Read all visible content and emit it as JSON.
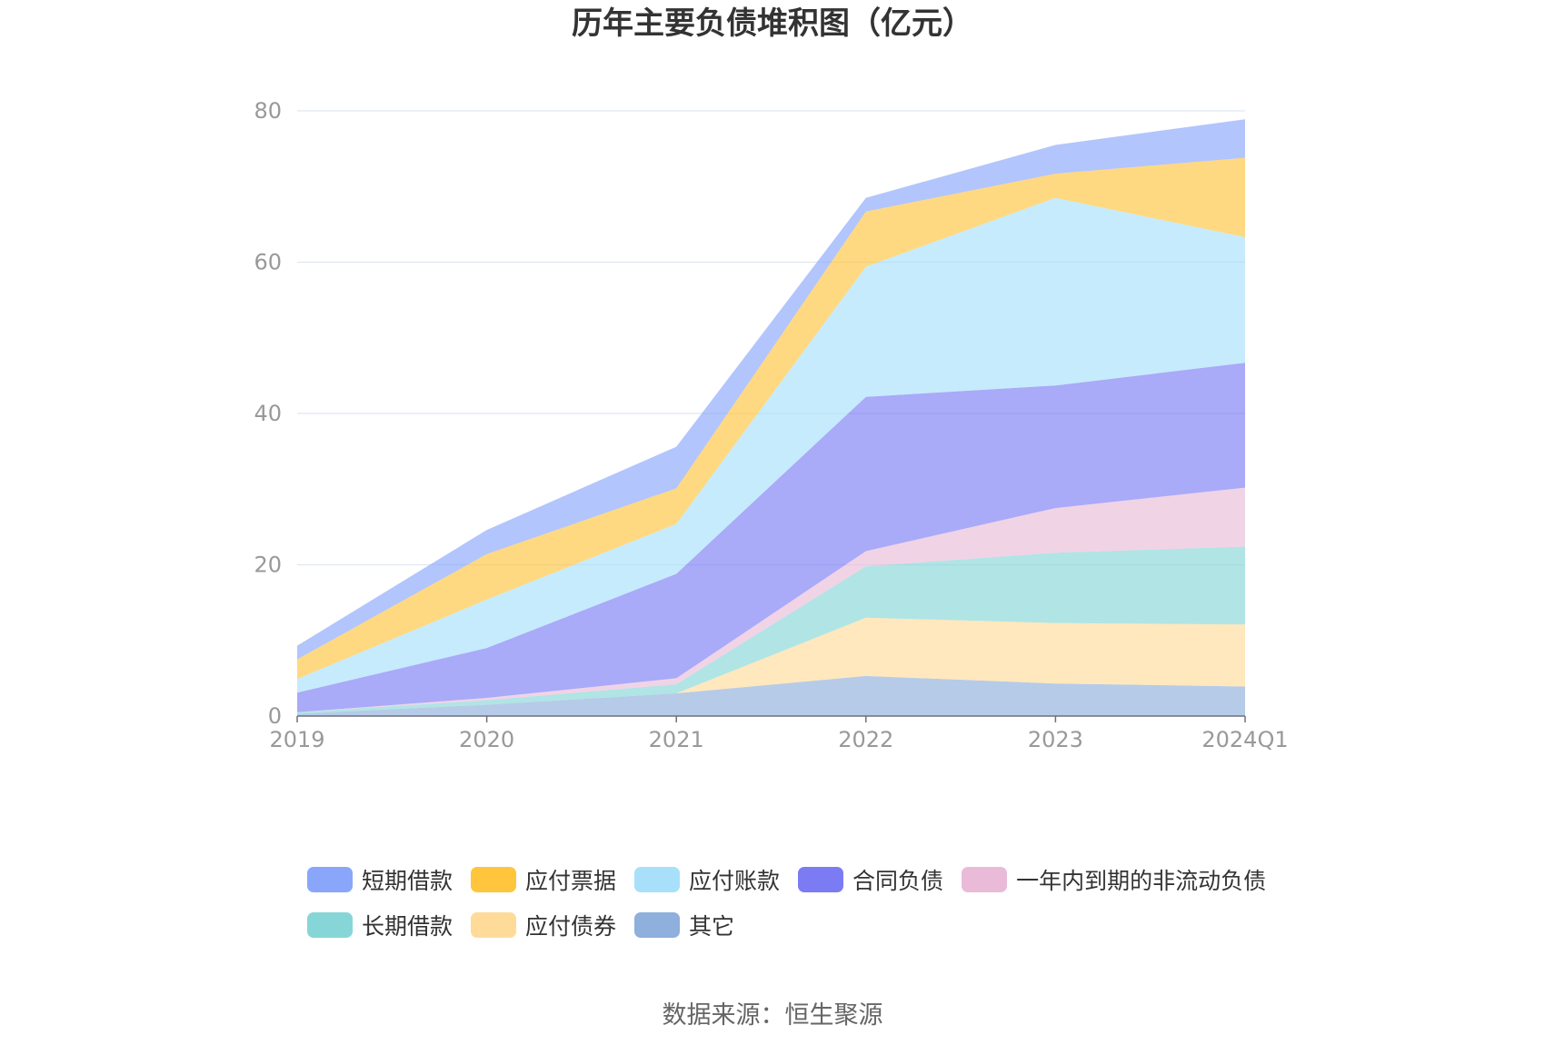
{
  "chart_data": {
    "type": "area",
    "stacked": true,
    "title": "历年主要负债堆积图（亿元）",
    "categories": [
      "2019",
      "2020",
      "2021",
      "2022",
      "2023",
      "2024Q1"
    ],
    "ylim": [
      0,
      80
    ],
    "yticks": [
      0,
      20,
      40,
      60,
      80
    ],
    "grid": true,
    "legend_position": "bottom",
    "series": [
      {
        "name": "其它",
        "color": "#8fafdc",
        "values": [
          0.3,
          1.5,
          3.0,
          5.3,
          4.3,
          3.9
        ]
      },
      {
        "name": "应付债券",
        "color": "#ffdb9a",
        "values": [
          0,
          0,
          0,
          7.7,
          8.0,
          8.2
        ]
      },
      {
        "name": "长期借款",
        "color": "#87d6d7",
        "values": [
          0.2,
          0.6,
          1.2,
          6.8,
          9.3,
          10.3
        ]
      },
      {
        "name": "一年内到期的非流动负债",
        "color": "#e9bbd9",
        "values": [
          0,
          0.3,
          0.8,
          2.0,
          5.9,
          7.8
        ]
      },
      {
        "name": "合同负债",
        "color": "#7b7cf4",
        "values": [
          2.6,
          6.6,
          13.8,
          20.4,
          16.2,
          16.5
        ]
      },
      {
        "name": "应付账款",
        "color": "#a8e0fb",
        "values": [
          1.8,
          6.4,
          6.6,
          17.2,
          24.8,
          16.6
        ]
      },
      {
        "name": "应付票据",
        "color": "#ffc53d",
        "values": [
          2.6,
          6.0,
          4.7,
          7.3,
          3.2,
          10.5
        ]
      },
      {
        "name": "短期借款",
        "color": "#89a6fb",
        "values": [
          1.8,
          3.2,
          5.5,
          1.8,
          3.8,
          5.1
        ]
      }
    ]
  },
  "legend": {
    "row1": [
      "短期借款",
      "应付票据",
      "应付账款",
      "合同负债",
      "一年内到期的非流动负债"
    ],
    "row2": [
      "长期借款",
      "应付债券",
      "其它"
    ]
  },
  "legend_colors": {
    "短期借款": "#89a6fb",
    "应付票据": "#ffc53d",
    "应付账款": "#a8e0fb",
    "合同负债": "#7b7cf4",
    "一年内到期的非流动负债": "#e9bbd9",
    "长期借款": "#87d6d7",
    "应付债券": "#ffdb9a",
    "其它": "#8fafdc"
  },
  "source": "数据来源：恒生聚源"
}
